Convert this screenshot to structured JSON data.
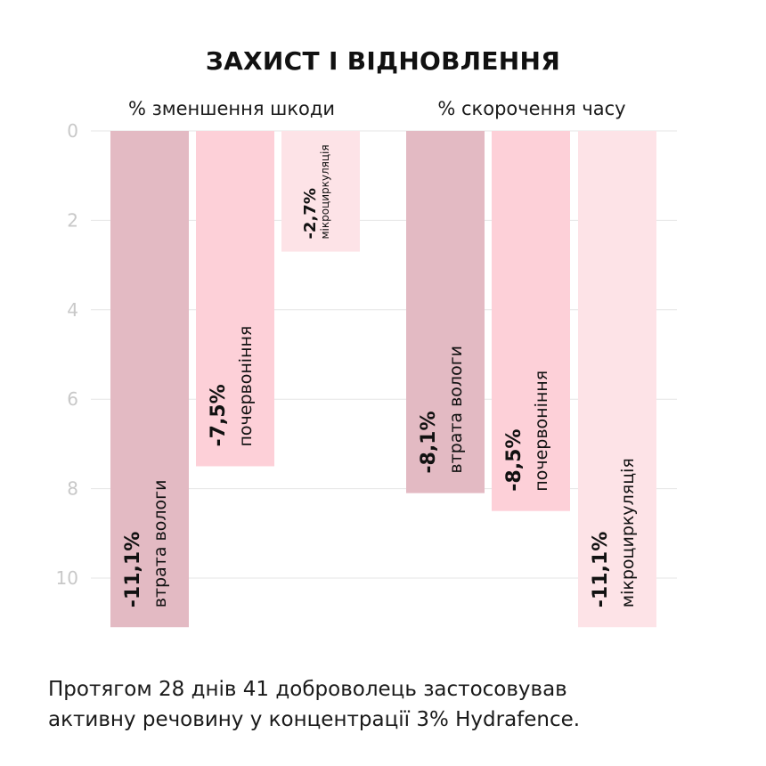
{
  "chart_data": {
    "type": "bar",
    "title": "ЗАХИСТ І ВІДНОВЛЕННЯ",
    "ylim": [
      0,
      11.4
    ],
    "yaxis_inverted": true,
    "yticks": [
      0,
      2,
      4,
      6,
      8,
      10
    ],
    "grid": true,
    "groups": [
      {
        "label": "% зменшення шкоди",
        "bars": [
          {
            "category": "втрата вологи",
            "value": 11.1,
            "label": "-11,1%",
            "color": "#e3bac3"
          },
          {
            "category": "почервоніння",
            "value": 7.5,
            "label": "-7,5%",
            "color": "#fdd0d8"
          },
          {
            "category": "мікроциркуляція",
            "value": 2.7,
            "label": "-2,7%",
            "color": "#fde3e7"
          }
        ]
      },
      {
        "label": "% скорочення часу",
        "bars": [
          {
            "category": "втрата вологи",
            "value": 8.1,
            "label": "-8,1%",
            "color": "#e3bac3"
          },
          {
            "category": "почервоніння",
            "value": 8.5,
            "label": "-8,5%",
            "color": "#fdd0d8"
          },
          {
            "category": "мікроциркуляція",
            "value": 11.1,
            "label": "-11,1%",
            "color": "#fde3e7"
          }
        ]
      }
    ]
  },
  "footnote": {
    "line1": "Протягом 28 днів 41 доброволець застосовував",
    "line2": "активну речовину у концентрації 3% Hydrafence."
  }
}
